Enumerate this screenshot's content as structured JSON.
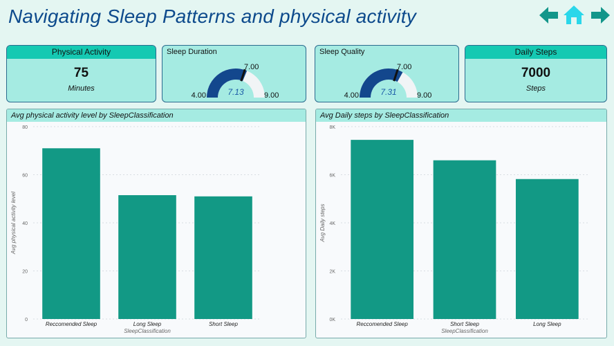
{
  "page": {
    "title": "Navigating Sleep Patterns and physical activity"
  },
  "nav": {
    "back": "arrow-left-icon",
    "home": "home-icon",
    "forward": "arrow-right-icon",
    "color": "#13968a"
  },
  "cards": {
    "physical": {
      "label": "Physical Activity",
      "value": "75",
      "unit": "Minutes"
    },
    "steps": {
      "label": "Daily Steps",
      "value": "7000",
      "unit": "Steps"
    }
  },
  "gauges": {
    "duration": {
      "title": "Sleep Duration",
      "min": 4,
      "max": 9,
      "target": 7,
      "value": 7.13,
      "min_label": "4.00",
      "max_label": "9.00",
      "target_label": "7.00",
      "value_label": "7.13"
    },
    "quality": {
      "title": "Sleep Quality",
      "min": 4,
      "max": 9,
      "target": 7,
      "value": 7.31,
      "min_label": "4.00",
      "max_label": "9.00",
      "target_label": "7.00",
      "value_label": "7.31"
    }
  },
  "colors": {
    "bar": "#129985",
    "gauge_fill": "#13478d",
    "gauge_bg": "#f1f4f6",
    "header": "#15c9b2"
  },
  "chart_data": [
    {
      "type": "bar",
      "title": "Avg physical activity level by SleepClassification",
      "categories": [
        "Reccomended Sleep",
        "Long Sleep",
        "Short Sleep"
      ],
      "values": [
        71,
        51.5,
        51
      ],
      "xlabel": "SleepClassification",
      "ylabel": "Avg physical activity level",
      "ylim": [
        0,
        80
      ],
      "yticks": [
        0,
        20,
        40,
        60,
        80
      ],
      "ytick_labels": [
        "0",
        "20",
        "40",
        "60",
        "80"
      ],
      "grid": true
    },
    {
      "type": "bar",
      "title": "Avg Daily steps by SleepClassification",
      "categories": [
        "Reccomended Sleep",
        "Short Sleep",
        "Long Sleep"
      ],
      "values": [
        7450,
        6600,
        5820
      ],
      "xlabel": "SleepClassification",
      "ylabel": "Avg Daily steps",
      "ylim": [
        0,
        8000
      ],
      "yticks": [
        0,
        2000,
        4000,
        6000,
        8000
      ],
      "ytick_labels": [
        "0K",
        "2K",
        "4K",
        "6K",
        "8K"
      ],
      "grid": true
    }
  ]
}
